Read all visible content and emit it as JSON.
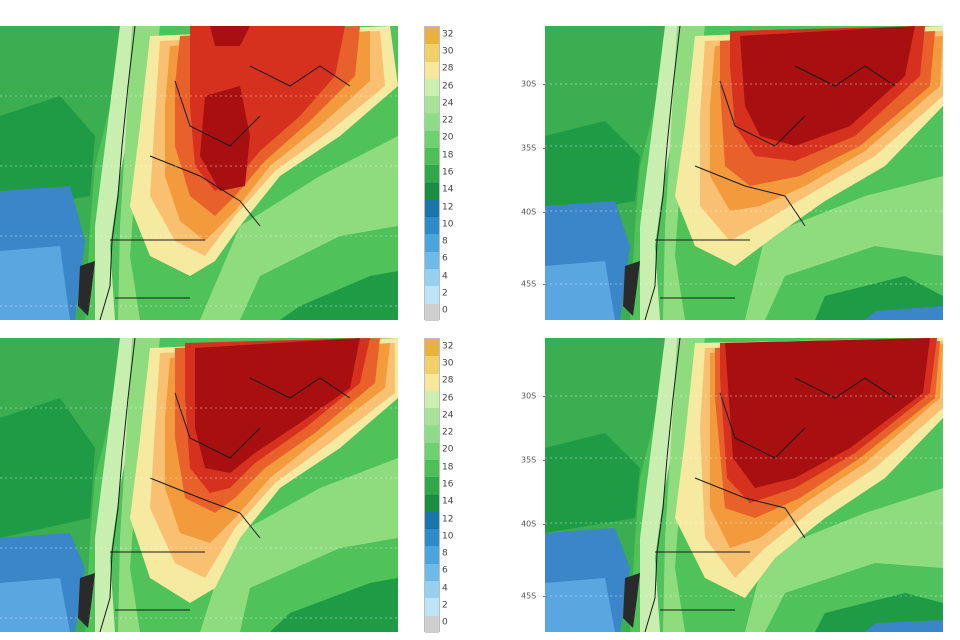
{
  "colorbar": {
    "labels": [
      "32",
      "30",
      "28",
      "26",
      "24",
      "22",
      "20",
      "18",
      "16",
      "14",
      "12",
      "10",
      "8",
      "6",
      "4",
      "2",
      "0"
    ],
    "colors": [
      "#e8b23c",
      "#f2cf6a",
      "#f7e79b",
      "#cdeeb1",
      "#a9e39a",
      "#8fdc88",
      "#6dd16f",
      "#4cbf55",
      "#2ea84a",
      "#1b8f41",
      "#1a75a8",
      "#2b8cc9",
      "#4aa5dc",
      "#6dbbe8",
      "#94d0f0",
      "#bfe4f6",
      "#cfcfcf"
    ]
  },
  "lat_labels": [
    "30S",
    "35S",
    "40S",
    "45S"
  ],
  "panels": [
    {
      "id": "top-left",
      "heat": 1.0
    },
    {
      "id": "top-right",
      "heat": 1.15
    },
    {
      "id": "bottom-left",
      "heat": 1.1
    },
    {
      "id": "bottom-right",
      "heat": 1.25
    }
  ],
  "colors": {
    "ocean_deep": "#3a86c9",
    "ocean_mid": "#5aa6e0",
    "green_dark": "#1f9a45",
    "green_mid": "#4fc25a",
    "green_light": "#8fdc7f",
    "green_pale": "#c9efb0",
    "yellow": "#f6e9a0",
    "orange_light": "#f8c070",
    "orange": "#f39a3c",
    "red_orange": "#e8602a",
    "red": "#d6301e",
    "dark_red": "#a80f10"
  }
}
